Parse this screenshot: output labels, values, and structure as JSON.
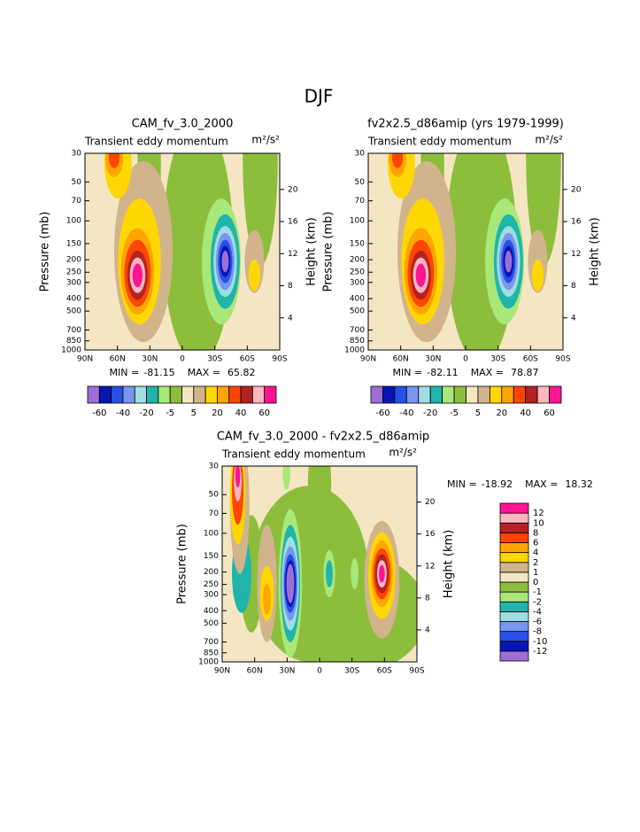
{
  "title": "DJF",
  "chart_data": [
    {
      "type": "contour",
      "title": "CAM_fv_3.0_2000",
      "subtitle": "Transient eddy momentum",
      "units": "m²/s²",
      "ylabel": "Pressure (mb)",
      "y2label": "Height (km)",
      "xlim": [
        90,
        -90
      ],
      "xticks": [
        {
          "value": 90,
          "label": "90N"
        },
        {
          "value": 60,
          "label": "60N"
        },
        {
          "value": 30,
          "label": "30N"
        },
        0,
        {
          "value": -30,
          "label": "30S"
        },
        {
          "value": -60,
          "label": "60S"
        },
        {
          "value": -90,
          "label": "90S"
        }
      ],
      "ylim": [
        1000,
        30
      ],
      "yscale": "log",
      "yticks": [
        30,
        50,
        70,
        100,
        150,
        200,
        250,
        300,
        400,
        500,
        700,
        850,
        1000
      ],
      "y2lim": [
        0,
        24.5
      ],
      "y2ticks": [
        4,
        8,
        12,
        16,
        20
      ],
      "min_label": "MIN =",
      "min": -81.15,
      "max_label": "MAX =",
      "max": 65.82,
      "colorbar": {
        "orientation": "horizontal",
        "colors": [
          "#9b6fd6",
          "#0a14b4",
          "#2850e6",
          "#7896f0",
          "#a0dce0",
          "#20b4aa",
          "#a8e878",
          "#8cbe3c",
          "#f5e6c3",
          "#d2b48c",
          "#ffd700",
          "#ffa500",
          "#ff4500",
          "#b22222",
          "#ffb6c1",
          "#ff1493"
        ],
        "labels": [
          -60,
          -40,
          -20,
          -5,
          5,
          20,
          40,
          60
        ]
      }
    },
    {
      "type": "contour",
      "title": "fv2x2.5_d86amip (yrs 1979-1999)",
      "subtitle": "Transient eddy momentum",
      "units": "m²/s²",
      "ylabel": "Pressure (mb)",
      "y2label": "Height (km)",
      "xlim": [
        90,
        -90
      ],
      "xticks": [
        {
          "value": 90,
          "label": "90N"
        },
        {
          "value": 60,
          "label": "60N"
        },
        {
          "value": 30,
          "label": "30N"
        },
        0,
        {
          "value": -30,
          "label": "30S"
        },
        {
          "value": -60,
          "label": "60S"
        },
        {
          "value": -90,
          "label": "90S"
        }
      ],
      "ylim": [
        1000,
        30
      ],
      "yscale": "log",
      "yticks": [
        30,
        50,
        70,
        100,
        150,
        200,
        250,
        300,
        400,
        500,
        700,
        850,
        1000
      ],
      "y2lim": [
        0,
        24.5
      ],
      "y2ticks": [
        4,
        8,
        12,
        16,
        20
      ],
      "min_label": "MIN =",
      "min": -82.11,
      "max_label": "MAX =",
      "max": 78.87,
      "colorbar": {
        "orientation": "horizontal",
        "colors": [
          "#9b6fd6",
          "#0a14b4",
          "#2850e6",
          "#7896f0",
          "#a0dce0",
          "#20b4aa",
          "#a8e878",
          "#8cbe3c",
          "#f5e6c3",
          "#d2b48c",
          "#ffd700",
          "#ffa500",
          "#ff4500",
          "#b22222",
          "#ffb6c1",
          "#ff1493"
        ],
        "labels": [
          -60,
          -40,
          -20,
          -5,
          5,
          20,
          40,
          60
        ]
      }
    },
    {
      "type": "contour",
      "title": "CAM_fv_3.0_2000 - fv2x2.5_d86amip",
      "subtitle": "Transient eddy momentum",
      "units": "m²/s²",
      "ylabel": "Pressure (mb)",
      "y2label": "Height (km)",
      "xlim": [
        90,
        -90
      ],
      "xticks": [
        {
          "value": 90,
          "label": "90N"
        },
        {
          "value": 60,
          "label": "60N"
        },
        {
          "value": 30,
          "label": "30N"
        },
        0,
        {
          "value": -30,
          "label": "30S"
        },
        {
          "value": -60,
          "label": "60S"
        },
        {
          "value": -90,
          "label": "90S"
        }
      ],
      "ylim": [
        1000,
        30
      ],
      "yscale": "log",
      "yticks": [
        30,
        50,
        70,
        100,
        150,
        200,
        250,
        300,
        400,
        500,
        700,
        850,
        1000
      ],
      "y2lim": [
        0,
        24.5
      ],
      "y2ticks": [
        4,
        8,
        12,
        16,
        20
      ],
      "min_label": "MIN =",
      "min": -18.92,
      "max_label": "MAX =",
      "max": 18.32,
      "colorbar": {
        "orientation": "vertical",
        "colors": [
          "#9b6fd6",
          "#0a14b4",
          "#2850e6",
          "#7896f0",
          "#a0dce0",
          "#20b4aa",
          "#a8e878",
          "#8cbe3c",
          "#f5e6c3",
          "#d2b48c",
          "#ffd700",
          "#ffa500",
          "#ff4500",
          "#b22222",
          "#ffb6c1",
          "#ff1493"
        ],
        "labels": [
          -12,
          -10,
          -8,
          -6,
          -4,
          -2,
          -1,
          0,
          1,
          2,
          4,
          6,
          8,
          10,
          12
        ]
      }
    }
  ]
}
